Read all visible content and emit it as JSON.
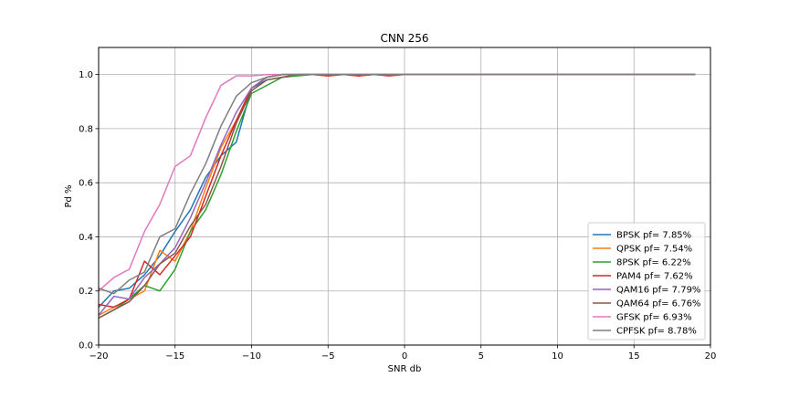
{
  "chart_data": {
    "type": "line",
    "title": "CNN 256",
    "xlabel": "SNR db",
    "ylabel": "Pd %",
    "xlim": [
      -20,
      20
    ],
    "ylim": [
      0.0,
      1.1
    ],
    "xticks": [
      -20,
      -15,
      -10,
      -5,
      0,
      5,
      10,
      15,
      20
    ],
    "xtick_labels": [
      "−20",
      "−15",
      "−10",
      "−5",
      "0",
      "5",
      "10",
      "15",
      "20"
    ],
    "yticks": [
      0.0,
      0.2,
      0.4,
      0.6,
      0.8,
      1.0
    ],
    "ytick_labels": [
      "0.0",
      "0.2",
      "0.4",
      "0.6",
      "0.8",
      "1.0"
    ],
    "grid": true,
    "legend_position": "lower-right",
    "x": [
      -20,
      -19,
      -18,
      -17,
      -16,
      -15,
      -14,
      -13,
      -12,
      -11,
      -10,
      -9,
      -8,
      -7,
      -6,
      -5,
      -4,
      -3,
      -2,
      -1,
      0,
      1,
      2,
      3,
      4,
      5,
      6,
      7,
      8,
      9,
      10,
      11,
      12,
      13,
      14,
      15,
      16,
      17,
      18,
      19
    ],
    "series": [
      {
        "name": "BPSK pf= 7.85%",
        "color": "#1f77b4",
        "values": [
          0.14,
          0.2,
          0.21,
          0.26,
          0.33,
          0.42,
          0.5,
          0.62,
          0.7,
          0.75,
          0.95,
          0.98,
          0.99,
          1.0,
          1.0,
          1.0,
          1.0,
          1.0,
          1.0,
          1.0,
          1.0,
          1.0,
          1.0,
          1.0,
          1.0,
          1.0,
          1.0,
          1.0,
          1.0,
          1.0,
          1.0,
          1.0,
          1.0,
          1.0,
          1.0,
          1.0,
          1.0,
          1.0,
          1.0,
          1.0
        ]
      },
      {
        "name": "QPSK pf= 7.54%",
        "color": "#ff7f0e",
        "values": [
          0.11,
          0.14,
          0.17,
          0.2,
          0.35,
          0.31,
          0.42,
          0.58,
          0.73,
          0.83,
          0.95,
          0.99,
          1.0,
          1.0,
          1.0,
          0.995,
          1.0,
          0.995,
          1.0,
          1.0,
          1.0,
          1.0,
          1.0,
          1.0,
          1.0,
          1.0,
          1.0,
          1.0,
          1.0,
          1.0,
          1.0,
          1.0,
          1.0,
          1.0,
          1.0,
          1.0,
          1.0,
          1.0,
          1.0,
          1.0
        ]
      },
      {
        "name": "8PSK pf= 6.22%",
        "color": "#2ca02c",
        "values": [
          0.1,
          0.13,
          0.17,
          0.22,
          0.2,
          0.28,
          0.42,
          0.5,
          0.63,
          0.79,
          0.93,
          0.96,
          0.99,
          0.995,
          1.0,
          1.0,
          1.0,
          1.0,
          1.0,
          1.0,
          1.0,
          1.0,
          1.0,
          1.0,
          1.0,
          1.0,
          1.0,
          1.0,
          1.0,
          1.0,
          1.0,
          1.0,
          1.0,
          1.0,
          1.0,
          1.0,
          1.0,
          1.0,
          1.0,
          1.0
        ]
      },
      {
        "name": "PAM4 pf= 7.62%",
        "color": "#d62728",
        "values": [
          0.15,
          0.14,
          0.17,
          0.31,
          0.26,
          0.33,
          0.4,
          0.55,
          0.7,
          0.83,
          0.95,
          0.99,
          1.0,
          1.0,
          1.0,
          0.995,
          1.0,
          0.995,
          1.0,
          0.995,
          1.0,
          1.0,
          1.0,
          1.0,
          1.0,
          1.0,
          1.0,
          1.0,
          1.0,
          1.0,
          1.0,
          1.0,
          1.0,
          1.0,
          1.0,
          1.0,
          1.0,
          1.0,
          1.0,
          1.0
        ]
      },
      {
        "name": "QAM16 pf= 7.79%",
        "color": "#9467bd",
        "values": [
          0.11,
          0.18,
          0.17,
          0.25,
          0.3,
          0.36,
          0.47,
          0.6,
          0.74,
          0.86,
          0.95,
          0.99,
          1.0,
          1.0,
          1.0,
          1.0,
          1.0,
          1.0,
          1.0,
          1.0,
          1.0,
          1.0,
          1.0,
          1.0,
          1.0,
          1.0,
          1.0,
          1.0,
          1.0,
          1.0,
          1.0,
          1.0,
          1.0,
          1.0,
          1.0,
          1.0,
          1.0,
          1.0,
          1.0,
          1.0
        ]
      },
      {
        "name": "QAM64 pf= 6.76%",
        "color": "#8c564b",
        "values": [
          0.1,
          0.13,
          0.16,
          0.22,
          0.3,
          0.34,
          0.44,
          0.52,
          0.66,
          0.82,
          0.94,
          0.98,
          0.99,
          1.0,
          1.0,
          1.0,
          1.0,
          1.0,
          1.0,
          1.0,
          1.0,
          1.0,
          1.0,
          1.0,
          1.0,
          1.0,
          1.0,
          1.0,
          1.0,
          1.0,
          1.0,
          1.0,
          1.0,
          1.0,
          1.0,
          1.0,
          1.0,
          1.0,
          1.0,
          1.0
        ]
      },
      {
        "name": "GFSK pf= 6.93%",
        "color": "#e377c2",
        "values": [
          0.2,
          0.25,
          0.28,
          0.42,
          0.52,
          0.66,
          0.7,
          0.84,
          0.96,
          0.995,
          0.995,
          1.0,
          1.0,
          1.0,
          1.0,
          1.0,
          1.0,
          1.0,
          1.0,
          1.0,
          1.0,
          1.0,
          1.0,
          1.0,
          1.0,
          1.0,
          1.0,
          1.0,
          1.0,
          1.0,
          1.0,
          1.0,
          1.0,
          1.0,
          1.0,
          1.0,
          1.0,
          1.0,
          1.0,
          1.0
        ]
      },
      {
        "name": "CPFSK pf= 8.78%",
        "color": "#7f7f7f",
        "values": [
          0.21,
          0.19,
          0.24,
          0.27,
          0.4,
          0.43,
          0.56,
          0.67,
          0.81,
          0.92,
          0.97,
          0.99,
          1.0,
          1.0,
          1.0,
          1.0,
          1.0,
          1.0,
          1.0,
          1.0,
          1.0,
          1.0,
          1.0,
          1.0,
          1.0,
          1.0,
          1.0,
          1.0,
          1.0,
          1.0,
          1.0,
          1.0,
          1.0,
          1.0,
          1.0,
          1.0,
          1.0,
          1.0,
          1.0,
          1.0
        ]
      }
    ]
  }
}
